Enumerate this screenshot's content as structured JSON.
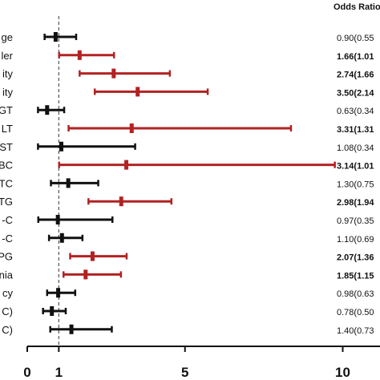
{
  "chart_data": {
    "type": "forest",
    "header": "Odds Ratio",
    "xlim": [
      0,
      11.2
    ],
    "xticks": [
      0,
      1,
      5,
      10
    ],
    "reference_line": 1,
    "colors": {
      "significant": "#b22222",
      "nonsignificant": "#111111"
    },
    "rows": [
      {
        "label": "ge",
        "or": 0.9,
        "lo": 0.55,
        "hi": 1.55,
        "text": "0.90(0.55",
        "bold": false
      },
      {
        "label": "ler",
        "or": 1.66,
        "lo": 1.01,
        "hi": 2.75,
        "text": "1.66(1.01",
        "bold": true
      },
      {
        "label": "ity",
        "or": 2.74,
        "lo": 1.66,
        "hi": 4.52,
        "text": "2.74(1.66",
        "bold": true
      },
      {
        "label": "ity",
        "or": 3.5,
        "lo": 2.14,
        "hi": 5.72,
        "text": "3.50(2.14",
        "bold": true
      },
      {
        "label": "GT",
        "or": 0.63,
        "lo": 0.34,
        "hi": 1.17,
        "text": "0.63(0.34",
        "bold": false
      },
      {
        "label": "LT",
        "or": 3.31,
        "lo": 1.31,
        "hi": 8.36,
        "text": "3.31(1.31",
        "bold": true
      },
      {
        "label": "ST",
        "or": 1.08,
        "lo": 0.34,
        "hi": 3.42,
        "text": "1.08(0.34",
        "bold": false
      },
      {
        "label": "BC",
        "or": 3.14,
        "lo": 1.01,
        "hi": 9.75,
        "text": "3.14(1.01",
        "bold": true
      },
      {
        "label": "TC",
        "or": 1.3,
        "lo": 0.75,
        "hi": 2.25,
        "text": "1.30(0.75",
        "bold": false
      },
      {
        "label": "TG",
        "or": 2.98,
        "lo": 1.94,
        "hi": 4.57,
        "text": "2.98(1.94",
        "bold": true
      },
      {
        "label": "-C",
        "or": 0.97,
        "lo": 0.35,
        "hi": 2.7,
        "text": "0.97(0.35",
        "bold": false
      },
      {
        "label": "-C",
        "or": 1.1,
        "lo": 0.69,
        "hi": 1.75,
        "text": "1.10(0.69",
        "bold": false
      },
      {
        "label": "PG",
        "or": 2.07,
        "lo": 1.36,
        "hi": 3.15,
        "text": "2.07(1.36",
        "bold": true
      },
      {
        "label": "nia",
        "or": 1.85,
        "lo": 1.15,
        "hi": 2.97,
        "text": "1.85(1.15",
        "bold": true
      },
      {
        "label": "cy",
        "or": 0.98,
        "lo": 0.63,
        "hi": 1.52,
        "text": "0.98(0.63",
        "bold": false
      },
      {
        "label": "C)",
        "or": 0.78,
        "lo": 0.5,
        "hi": 1.22,
        "text": "0.78(0.50",
        "bold": false
      },
      {
        "label": "C)",
        "or": 1.4,
        "lo": 0.73,
        "hi": 2.68,
        "text": "1.40(0.73",
        "bold": false
      }
    ]
  }
}
